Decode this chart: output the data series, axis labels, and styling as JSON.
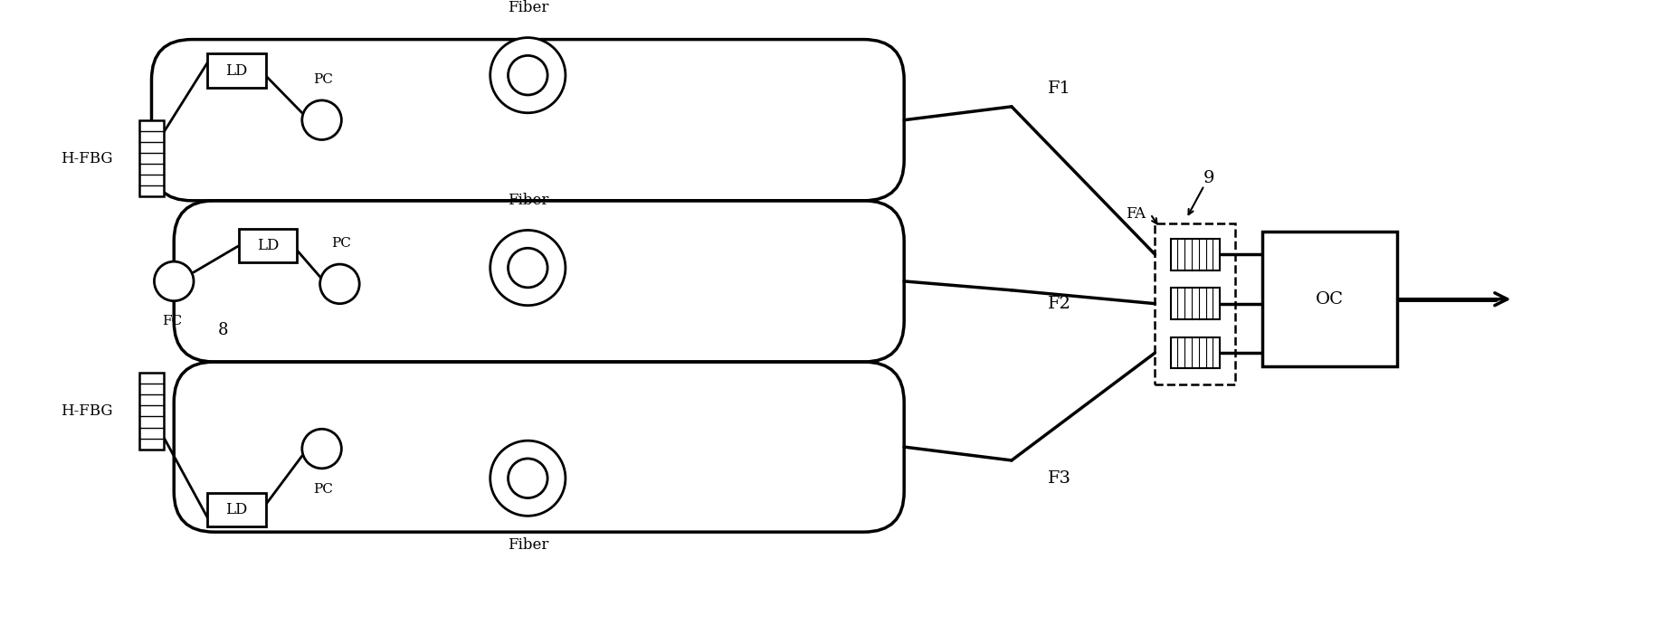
{
  "bg_color": "#ffffff",
  "line_color": "#000000",
  "line_width": 2.0,
  "fig_width": 18.29,
  "fig_height": 7.02,
  "dpi": 100,
  "labels": {
    "LD1": [
      1.6,
      6.3
    ],
    "LD2": [
      2.1,
      4.0
    ],
    "LD3": [
      1.6,
      1.4
    ],
    "PC1": "PC",
    "PC2": "PC",
    "PC3": "PC",
    "Fiber1": "Fiber",
    "Fiber2": "Fiber",
    "Fiber3": "Fiber",
    "F1": "F1",
    "F2": "F2",
    "F3": "F3",
    "FA": "FA",
    "OC": "OC",
    "FC": "FC",
    "HFBG1": "H-FBG",
    "HFBG2": "H-FBG",
    "num8": "8",
    "num9": "9"
  }
}
